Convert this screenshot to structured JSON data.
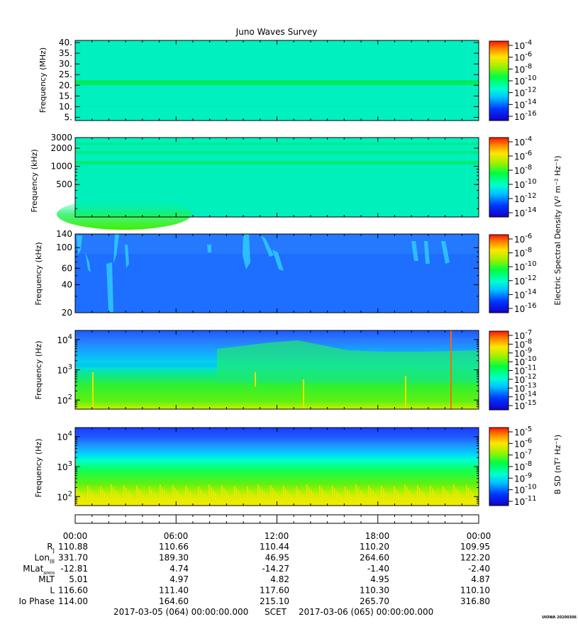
{
  "title": "Juno Waves Survey",
  "footer_left": "2017-03-05 (064) 00:00:00.000",
  "footer_mid": "SCET",
  "footer_right": "2017-03-06 (065) 00:00:00.000",
  "credit": "UIOWA 20200306",
  "colorbar_titles": {
    "electric": "Electric Spectral Density (V² m⁻² Hz⁻¹)",
    "magnetic": "B SD (nT² Hz⁻¹)"
  },
  "time_axis": {
    "tick_labels": [
      "00:00",
      "06:00",
      "12:00",
      "18:00",
      "00:00"
    ]
  },
  "ephemeris": {
    "labels": [
      "RJ",
      "LonIII",
      "MLatJRM09",
      "MLT",
      "L",
      "Io Phase"
    ],
    "rows": [
      [
        "110.88",
        "110.66",
        "110.44",
        "110.20",
        "109.95"
      ],
      [
        "331.70",
        "189.30",
        "46.95",
        "264.60",
        "122.20"
      ],
      [
        "-12.81",
        "4.74",
        "-14.27",
        "-1.40",
        "-2.40"
      ],
      [
        "5.01",
        "4.97",
        "4.82",
        "4.95",
        "4.87"
      ],
      [
        "116.60",
        "111.40",
        "117.60",
        "110.30",
        "110.10"
      ],
      [
        "114.00",
        "164.60",
        "215.10",
        "265.70",
        "316.80"
      ]
    ]
  },
  "chart_data": [
    {
      "type": "heatmap",
      "title": "Juno Waves Survey",
      "ylabel": "Frequency (MHz)",
      "yscale": "linear",
      "ylim": [
        3.5,
        41
      ],
      "y_ticks": [
        5,
        10,
        15,
        20,
        25,
        30,
        35,
        40
      ],
      "y_tick_labels": [
        "5.",
        "10.",
        "15.",
        "20.",
        "25.",
        "30.",
        "35.",
        "40."
      ],
      "colorbar": {
        "exponents": [
          -4,
          -6,
          -8,
          -10,
          -12,
          -14,
          -16
        ]
      }
    },
    {
      "type": "heatmap",
      "ylabel": "Frequency (kHz)",
      "yscale": "log",
      "ylim": [
        145,
        3000
      ],
      "y_ticks": [
        500,
        1000,
        2000,
        3000
      ],
      "y_tick_labels": [
        "500",
        "1000",
        "2000",
        "3000"
      ],
      "colorbar": {
        "exponents": [
          -4,
          -6,
          -8,
          -10,
          -12,
          -14
        ]
      }
    },
    {
      "type": "heatmap",
      "ylabel": "Frequency (kHz)",
      "yscale": "log",
      "ylim": [
        20,
        140
      ],
      "y_ticks": [
        20,
        40,
        60,
        100,
        140
      ],
      "y_tick_labels": [
        "20",
        "40",
        "60",
        "100",
        "140"
      ],
      "colorbar": {
        "exponents": [
          -6,
          -8,
          -10,
          -12,
          -14,
          -16
        ]
      }
    },
    {
      "type": "heatmap",
      "ylabel": "Frequency (Hz)",
      "yscale": "log",
      "ylim": [
        50,
        20000
      ],
      "y_ticks": [
        100,
        1000,
        10000
      ],
      "y_tick_exponents": [
        "2",
        "3",
        "4"
      ],
      "colorbar": {
        "exponents": [
          -7,
          -8,
          -9,
          -10,
          -11,
          -12,
          -13,
          -14,
          -15
        ]
      }
    },
    {
      "type": "heatmap",
      "ylabel": "Frequency (Hz)",
      "yscale": "log",
      "ylim": [
        50,
        20000
      ],
      "y_ticks": [
        100,
        1000,
        10000
      ],
      "y_tick_exponents": [
        "2",
        "3",
        "4"
      ],
      "colorbar": {
        "exponents": [
          -5,
          -6,
          -7,
          -8,
          -9,
          -10,
          -11
        ]
      }
    }
  ]
}
